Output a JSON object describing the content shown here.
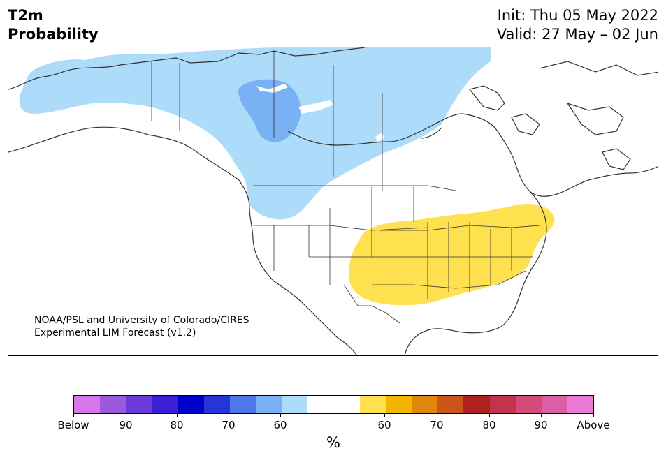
{
  "title": {
    "line1": "T2m",
    "line2": "Probability"
  },
  "init": "Init: Thu 05 May 2022",
  "valid": "Valid: 27 May – 02 Jun",
  "credit": {
    "line1": "NOAA/PSL and University of Colorado/CIRES",
    "line2": "Experimental LIM Forecast (v1.2)"
  },
  "colorbar": {
    "unit": "%",
    "colors": [
      "#d676e8",
      "#9b59e0",
      "#6a3bd8",
      "#3b1fd4",
      "#0000cc",
      "#2536d8",
      "#4f77e8",
      "#78b1f4",
      "#addcfb",
      "#ffffff",
      "#ffffff",
      "#ffe04f",
      "#f2b500",
      "#df860d",
      "#c8561a",
      "#b0221f",
      "#c2334d",
      "#d14b7b",
      "#dc5ea5",
      "#e97ad8"
    ],
    "ticks": [
      "Below",
      "90",
      "80",
      "70",
      "60",
      "60",
      "70",
      "80",
      "90",
      "Above"
    ]
  },
  "regions": [
    {
      "name": "below-normal-60",
      "color": "#addcfb"
    },
    {
      "name": "below-normal-70",
      "color": "#78b1f4"
    },
    {
      "name": "above-normal-60",
      "color": "#ffe04f"
    }
  ]
}
